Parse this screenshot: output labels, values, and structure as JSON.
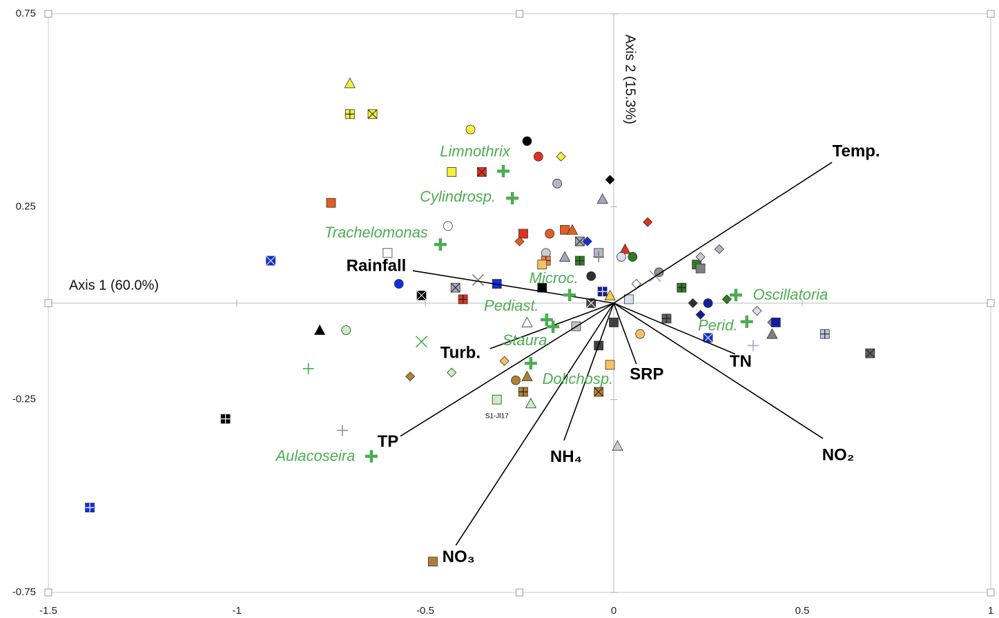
{
  "chart_data": {
    "type": "biplot",
    "xlabel": "Axis 1 (60.0%)",
    "ylabel": "Axis 2 (15.3%)",
    "xlim": [
      -1.5,
      1
    ],
    "ylim": [
      -0.75,
      0.75
    ],
    "xticks": [
      -1.5,
      -1,
      -0.5,
      0,
      0.5,
      1
    ],
    "yticks": [
      -0.75,
      -0.25,
      0.25,
      0.75
    ],
    "vector_color": "#000000",
    "species_color": "#4cad50",
    "vectors": [
      {
        "name": "Temp.",
        "x": 0.579,
        "y": 0.365
      },
      {
        "name": "Rainfall",
        "x": -0.533,
        "y": 0.084
      },
      {
        "name": "Turb.",
        "x": -0.328,
        "y": -0.118
      },
      {
        "name": "TP",
        "x": -0.566,
        "y": -0.345
      },
      {
        "name": "NO₃",
        "x": -0.419,
        "y": -0.628
      },
      {
        "name": "NH₄",
        "x": -0.132,
        "y": -0.356
      },
      {
        "name": "SRP",
        "x": 0.06,
        "y": -0.158
      },
      {
        "name": "TN",
        "x": 0.322,
        "y": -0.132
      },
      {
        "name": "NO₂",
        "x": 0.555,
        "y": -0.351
      }
    ],
    "species": [
      {
        "name": "Limnothrix",
        "x": -0.293,
        "y": 0.342
      },
      {
        "name": "Cylindrosp.",
        "x": -0.269,
        "y": 0.272
      },
      {
        "name": "Trachelomonas",
        "x": -0.46,
        "y": 0.152
      },
      {
        "name": "Microc.",
        "x": -0.117,
        "y": 0.021
      },
      {
        "name": "Pediast.",
        "x": -0.178,
        "y": -0.043
      },
      {
        "name": "Staura.",
        "x": -0.161,
        "y": -0.061
      },
      {
        "name": "Dolichosp.",
        "x": -0.22,
        "y": -0.156
      },
      {
        "name": "Aulacoseira",
        "x": -0.643,
        "y": -0.397
      },
      {
        "name": "Oscillatoria",
        "x": 0.324,
        "y": 0.021
      },
      {
        "name": "Perid.",
        "x": 0.353,
        "y": -0.048
      }
    ],
    "annotation": {
      "text": "S1-Jl17",
      "x": -0.31,
      "y": -0.25
    },
    "samples": {
      "x": [
        -0.7,
        -0.7,
        -0.64,
        -0.38,
        -0.23,
        -0.2,
        -0.14,
        -0.43,
        -0.35,
        -0.15,
        -0.01,
        -0.03,
        -0.75,
        -0.44,
        -0.24,
        -0.25,
        -0.17,
        -0.13,
        -0.11,
        -0.09,
        -0.07,
        -0.04,
        -0.04,
        0.09,
        0.03,
        0.05,
        0.02,
        -0.6,
        -0.91,
        -0.18,
        -0.18,
        -0.19,
        -0.13,
        -0.09,
        -0.06,
        -0.57,
        -0.51,
        -0.42,
        -0.36,
        -0.31,
        -0.4,
        -0.19,
        -0.03,
        -0.01,
        -0.06,
        0.06,
        0.11,
        0.04,
        0.12,
        0.22,
        0.23,
        0.23,
        0.28,
        0.18,
        0.21,
        0.25,
        0.3,
        0.23,
        0.38,
        0.42,
        0.43,
        0.42,
        0.25,
        0.37,
        0.56,
        0.68,
        0.14,
        0.0,
        -0.04,
        0.07,
        -0.01,
        -0.1,
        -0.23,
        -0.78,
        -0.71,
        -0.51,
        -0.81,
        -0.54,
        -0.43,
        -0.29,
        -0.26,
        -0.23,
        -0.24,
        -0.22,
        -0.31,
        -0.04,
        0.01,
        -1.03,
        -0.72,
        -1.39,
        -0.48
      ],
      "y": [
        0.57,
        0.49,
        0.49,
        0.45,
        0.42,
        0.38,
        0.38,
        0.34,
        0.34,
        0.31,
        0.32,
        0.27,
        0.26,
        0.2,
        0.18,
        0.16,
        0.18,
        0.19,
        0.19,
        0.16,
        0.16,
        0.13,
        0.12,
        0.21,
        0.14,
        0.12,
        0.12,
        0.13,
        0.11,
        0.13,
        0.11,
        0.1,
        0.12,
        0.11,
        0.07,
        0.05,
        0.02,
        0.04,
        0.06,
        0.05,
        0.01,
        0.04,
        0.03,
        0.02,
        0.0,
        0.05,
        0.07,
        0.01,
        0.08,
        0.1,
        0.09,
        0.12,
        0.14,
        0.04,
        0.0,
        0.0,
        0.01,
        -0.03,
        -0.02,
        -0.05,
        -0.05,
        -0.08,
        -0.09,
        -0.11,
        -0.08,
        -0.13,
        -0.04,
        -0.05,
        -0.11,
        -0.08,
        -0.16,
        -0.06,
        -0.05,
        -0.07,
        -0.07,
        -0.1,
        -0.17,
        -0.19,
        -0.18,
        -0.15,
        -0.2,
        -0.19,
        -0.23,
        -0.26,
        -0.25,
        -0.23,
        -0.37,
        -0.3,
        -0.33,
        -0.53,
        -0.67
      ],
      "shape": [
        "triangle",
        "psquare",
        "xsquare",
        "circle",
        "circle",
        "circle",
        "diamond",
        "square",
        "xsquare",
        "circle",
        "diamond",
        "triangle",
        "square",
        "circle",
        "square",
        "diamond",
        "circle",
        "square",
        "triangle",
        "xsquare",
        "diamond",
        "square",
        "plus",
        "diamond",
        "triangle",
        "circle",
        "circle",
        "square",
        "xsquare",
        "circle",
        "psquare",
        "square",
        "triangle",
        "psquare",
        "circle",
        "circle",
        "xsquare",
        "xsquare",
        "x",
        "square",
        "psquare",
        "square",
        "psquare",
        "triangle",
        "xsquare",
        "diamond",
        "x",
        "square",
        "circle",
        "square",
        "square",
        "diamond",
        "diamond",
        "psquare",
        "diamond",
        "circle",
        "diamond",
        "diamond",
        "diamond",
        "diamond",
        "square",
        "triangle",
        "xsquare",
        "plus",
        "psquare",
        "xsquare",
        "psquare",
        "square",
        "square",
        "circle",
        "square",
        "square",
        "triangle",
        "triangle",
        "circle",
        "x",
        "plus",
        "diamond",
        "diamond",
        "diamond",
        "circle",
        "triangle",
        "psquare",
        "triangle",
        "square",
        "xsquare",
        "triangle",
        "psquare",
        "plus",
        "psquare",
        "square"
      ],
      "color": [
        "#f5f03c",
        "#f5f03c",
        "#f5f03c",
        "#f5f03c",
        "#000000",
        "#e03020",
        "#f5f03c",
        "#f5f03c",
        "#e03020",
        "#b0b8c8",
        "#000000",
        "#a0a8b8",
        "#e06020",
        "#ffffff",
        "#e03020",
        "#e06020",
        "#e06020",
        "#e06020",
        "#e06020",
        "#a0a8b8",
        "#1030e0",
        "#b0b8c8",
        "#808080",
        "#e03020",
        "#e03020",
        "#2e7d22",
        "#d8e0f0",
        "#ffffff",
        "#1030e0",
        "#c8ccd4",
        "#f08040",
        "#f8c060",
        "#a0a8b8",
        "#2e7d22",
        "#303030",
        "#1030e0",
        "#000000",
        "#a0a8b8",
        "#808080",
        "#1030e0",
        "#e03020",
        "#000000",
        "#10209a",
        "#f5d040",
        "#404040",
        "#ffffff",
        "#90a8d8",
        "#d8e0f0",
        "#909090",
        "#2e7d22",
        "#808080",
        "#c8ccd4",
        "#b0b8c8",
        "#2e7d22",
        "#303030",
        "#10209a",
        "#2e7d22",
        "#10209a",
        "#d8e0f0",
        "#909090",
        "#10209a",
        "#808080",
        "#1030e0",
        "#a0a8c8",
        "#b8c8e0",
        "#606060",
        "#606060",
        "#404040",
        "#404040",
        "#f8c060",
        "#f8c060",
        "#c0c0c0",
        "#ffffff",
        "#000000",
        "#c8f0c0",
        "#3cb04a",
        "#3cb04a",
        "#b08030",
        "#c8f0c0",
        "#f8c060",
        "#b08030",
        "#b08030",
        "#b08030",
        "#c8f0c0",
        "#c8f0c0",
        "#b08030",
        "#c8ccd4",
        "#000000",
        "#909090",
        "#1030e0",
        "#b08030"
      ]
    }
  }
}
